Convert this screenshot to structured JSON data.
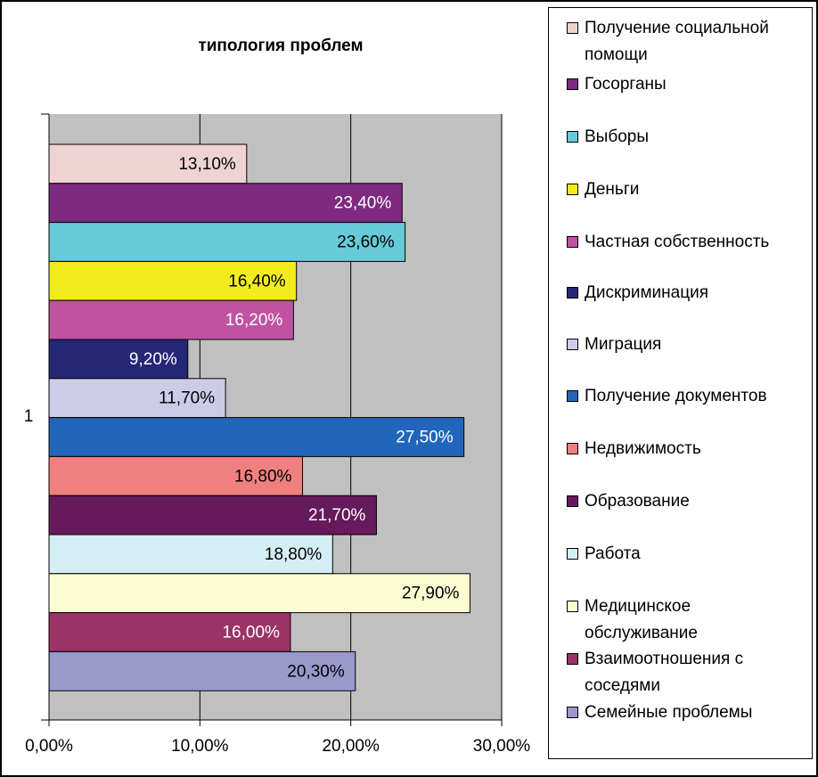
{
  "chart_data": {
    "type": "bar",
    "orientation": "horizontal",
    "title": "типология проблем",
    "categories": [
      "1"
    ],
    "series": [
      {
        "name": "Получение социальной помощи",
        "color": "#efd3d3",
        "values": [
          13.1
        ],
        "value_labels": [
          "13,10%"
        ]
      },
      {
        "name": "Госорганы",
        "color": "#7e2a80",
        "values": [
          23.4
        ],
        "value_labels": [
          "23,40%"
        ]
      },
      {
        "name": "Выборы",
        "color": "#66cad8",
        "values": [
          23.6
        ],
        "value_labels": [
          "23,60%"
        ]
      },
      {
        "name": "Деньги",
        "color": "#f2ec1c",
        "values": [
          16.4
        ],
        "value_labels": [
          "16,40%"
        ]
      },
      {
        "name": "Частная собственность",
        "color": "#c052a2",
        "values": [
          16.2
        ],
        "value_labels": [
          "16,20%"
        ]
      },
      {
        "name": "Дискриминация",
        "color": "#262676",
        "values": [
          9.2
        ],
        "value_labels": [
          "9,20%"
        ]
      },
      {
        "name": "Миграция",
        "color": "#cccce8",
        "values": [
          11.7
        ],
        "value_labels": [
          "11,70%"
        ]
      },
      {
        "name": "Получение документов",
        "color": "#2266bb",
        "values": [
          27.5
        ],
        "value_labels": [
          "27,50%"
        ]
      },
      {
        "name": "Недвижимость",
        "color": "#f08080",
        "values": [
          16.8
        ],
        "value_labels": [
          "16,80%"
        ]
      },
      {
        "name": "Образование",
        "color": "#661a5c",
        "values": [
          21.7
        ],
        "value_labels": [
          "21,70%"
        ]
      },
      {
        "name": "Работа",
        "color": "#d4eef4",
        "values": [
          18.8
        ],
        "value_labels": [
          "18,80%"
        ]
      },
      {
        "name": "Медицинское обслуживание",
        "color": "#fcfcd2",
        "values": [
          27.9
        ],
        "value_labels": [
          "27,90%"
        ]
      },
      {
        "name": "Взаимоотношения с соседями",
        "color": "#9a3366",
        "values": [
          16.0
        ],
        "value_labels": [
          "16,00%"
        ]
      },
      {
        "name": "Семейные проблемы",
        "color": "#9999cc",
        "values": [
          20.3
        ],
        "value_labels": [
          "20,30%"
        ]
      }
    ],
    "xlim": [
      0,
      30
    ],
    "xticks": [
      {
        "value": 0,
        "label": "0,00%"
      },
      {
        "value": 10,
        "label": "10,00%"
      },
      {
        "value": 20,
        "label": "20,00%"
      },
      {
        "value": 30,
        "label": "30,00%"
      }
    ],
    "grid": true,
    "legend": "right"
  }
}
